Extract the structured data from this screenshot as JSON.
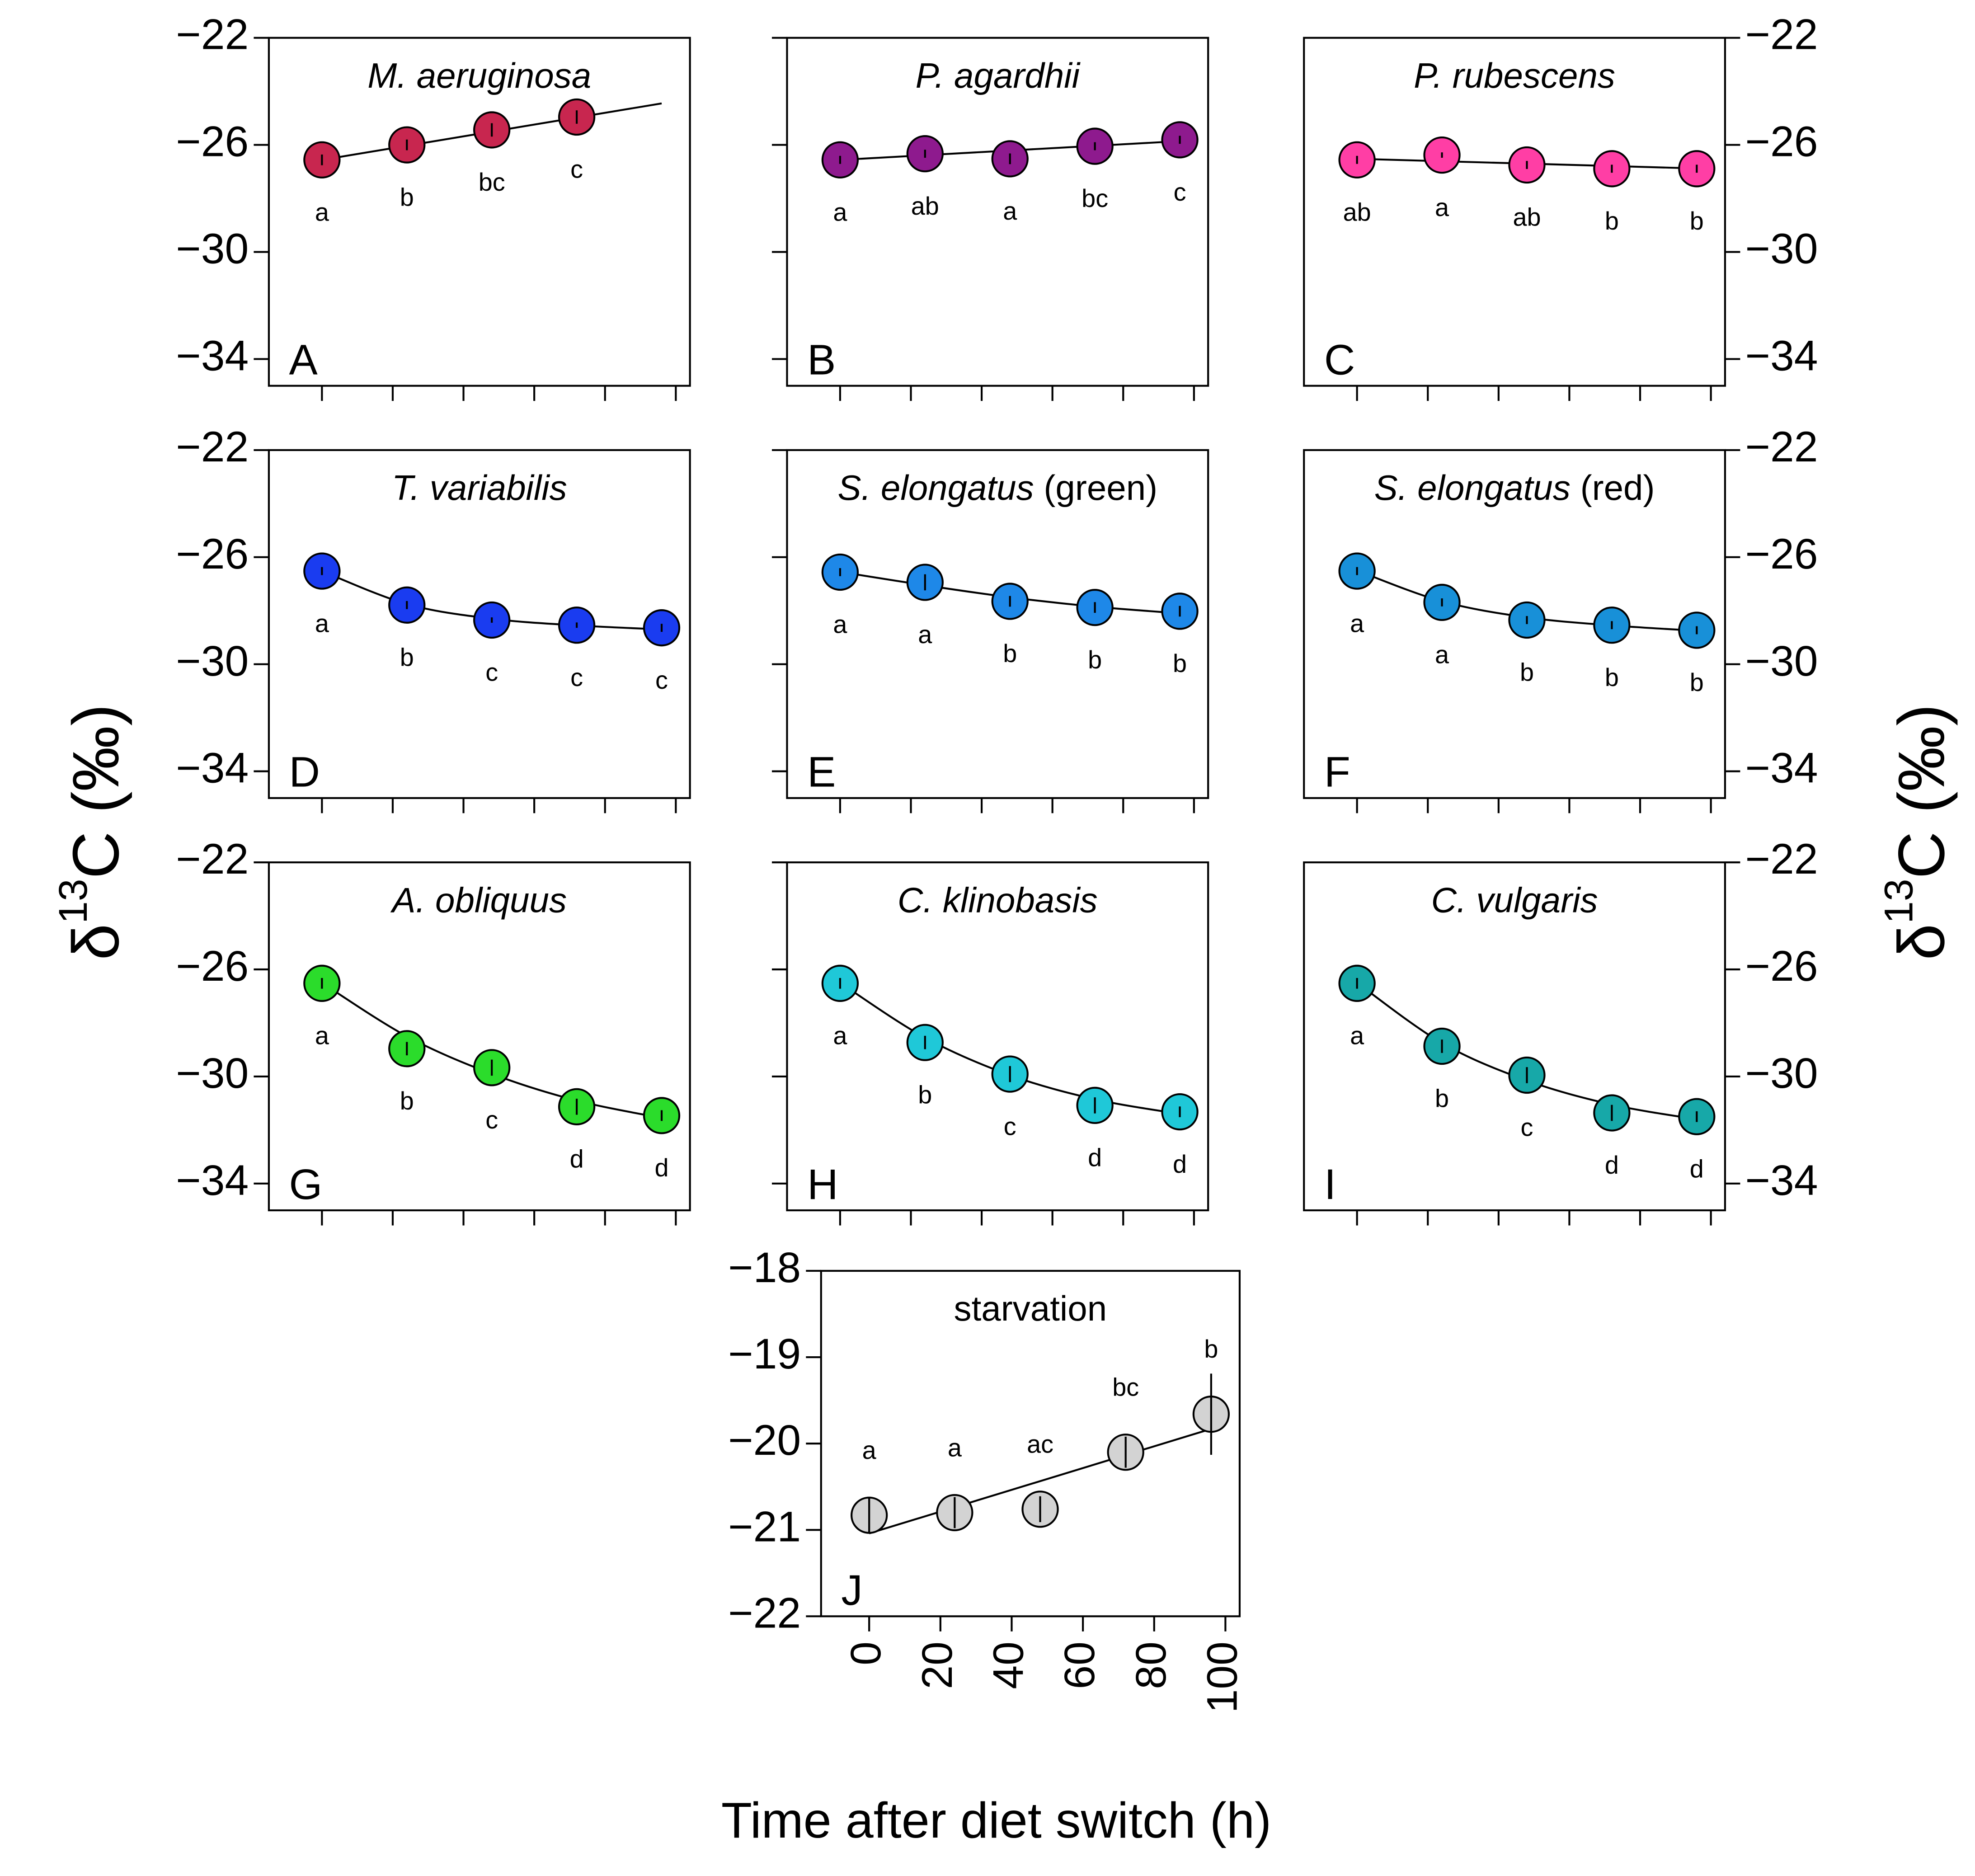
{
  "figure": {
    "ylabel": {
      "symbol": "δ",
      "superscript": "13",
      "rest": "C (‰)"
    },
    "xlabel": "Time after diet switch (h)"
  },
  "chart_data": [
    {
      "type": "scatter",
      "label": "A",
      "title": "M. aeruginosa",
      "title_italic": true,
      "color": "#c8264f",
      "x": [
        0,
        24,
        48,
        72
      ],
      "values": [
        -26.56,
        -26.0,
        -25.44,
        -24.96
      ],
      "errors": [
        0.2,
        0.2,
        0.25,
        0.25
      ],
      "letters": [
        "a",
        "b",
        "bc",
        "c"
      ],
      "letters_position": "below",
      "fit_x": [
        0,
        96
      ],
      "fit_values": [
        -26.56,
        -24.45
      ],
      "fit_shape": "line",
      "xlim": [
        -15,
        104
      ],
      "xticks": [
        0,
        20,
        40,
        60,
        80,
        100
      ],
      "xtick_labels": false,
      "ylim": [
        -35,
        -22
      ],
      "yticks": [
        {
          "value": -34,
          "label": "−34"
        },
        {
          "value": -30,
          "label": "−30"
        },
        {
          "value": -26,
          "label": "−26"
        },
        {
          "value": -22,
          "label": "−22"
        }
      ],
      "yaxis_side": "left"
    },
    {
      "type": "scatter",
      "label": "B",
      "title": "P. agardhii",
      "title_italic": true,
      "color": "#8e1a8e",
      "x": [
        0,
        24,
        48,
        72,
        96
      ],
      "values": [
        -26.56,
        -26.33,
        -26.52,
        -26.05,
        -25.81
      ],
      "errors": [
        0.15,
        0.15,
        0.2,
        0.15,
        0.15
      ],
      "letters": [
        "a",
        "ab",
        "a",
        "bc",
        "c"
      ],
      "letters_position": "below",
      "fit_x": [
        0,
        96
      ],
      "fit_values": [
        -26.56,
        -25.86
      ],
      "fit_shape": "line",
      "xlim": [
        -15,
        104
      ],
      "xticks": [
        0,
        20,
        40,
        60,
        80,
        100
      ],
      "xtick_labels": false,
      "ylim": [
        -35,
        -22
      ],
      "yticks": [
        -34,
        -30,
        -26,
        -22
      ],
      "yaxis_side": "left"
    },
    {
      "type": "scatter",
      "label": "C",
      "title": "P. rubescens",
      "title_italic": true,
      "color": "#ff3ea5",
      "x": [
        0,
        24,
        48,
        72,
        96
      ],
      "values": [
        -26.56,
        -26.38,
        -26.75,
        -26.89,
        -26.89
      ],
      "errors": [
        0.15,
        0.1,
        0.15,
        0.15,
        0.15
      ],
      "letters": [
        "ab",
        "a",
        "ab",
        "b",
        "b"
      ],
      "letters_position": "below",
      "fit_x": [
        0,
        96
      ],
      "fit_values": [
        -26.52,
        -26.88
      ],
      "fit_shape": "line",
      "xlim": [
        -15,
        104
      ],
      "xticks": [
        0,
        20,
        40,
        60,
        80,
        100
      ],
      "xtick_labels": false,
      "ylim": [
        -35,
        -22
      ],
      "yticks": [
        {
          "value": -34,
          "label": "−34"
        },
        {
          "value": -30,
          "label": "−30"
        },
        {
          "value": -26,
          "label": "−26"
        },
        {
          "value": -22,
          "label": "−22"
        }
      ],
      "yaxis_side": "right"
    },
    {
      "type": "scatter",
      "label": "D",
      "title": "T. variabilis",
      "title_italic": true,
      "color": "#1a3cf0",
      "x": [
        0,
        24,
        48,
        72,
        96
      ],
      "values": [
        -26.52,
        -27.79,
        -28.35,
        -28.54,
        -28.64
      ],
      "errors": [
        0.15,
        0.15,
        0.1,
        0.1,
        0.15
      ],
      "letters": [
        "a",
        "b",
        "c",
        "c",
        "c"
      ],
      "letters_position": "below",
      "fit_x": [
        0,
        24,
        48,
        72,
        96
      ],
      "fit_values": [
        -26.52,
        -27.75,
        -28.3,
        -28.55,
        -28.7
      ],
      "fit_shape": "curve",
      "xlim": [
        -15,
        104
      ],
      "xticks": [
        0,
        20,
        40,
        60,
        80,
        100
      ],
      "xtick_labels": false,
      "ylim": [
        -35,
        -22
      ],
      "yticks": [
        {
          "value": -34,
          "label": "−34"
        },
        {
          "value": -30,
          "label": "−30"
        },
        {
          "value": -26,
          "label": "−26"
        },
        {
          "value": -22,
          "label": "−22"
        }
      ],
      "yaxis_side": "left"
    },
    {
      "type": "scatter",
      "label": "E",
      "title": "S. elongatus",
      "title_note": "(green)",
      "title_italic": true,
      "color": "#1e88e8",
      "x": [
        0,
        24,
        48,
        72,
        96
      ],
      "values": [
        -26.56,
        -26.94,
        -27.65,
        -27.88,
        -28.02
      ],
      "errors": [
        0.15,
        0.3,
        0.2,
        0.2,
        0.2
      ],
      "letters": [
        "a",
        "a",
        "b",
        "b",
        "b"
      ],
      "letters_position": "below",
      "fit_x": [
        0,
        24,
        48,
        72,
        96
      ],
      "fit_values": [
        -26.55,
        -27.05,
        -27.5,
        -27.85,
        -28.1
      ],
      "fit_shape": "curve",
      "xlim": [
        -15,
        104
      ],
      "xticks": [
        0,
        20,
        40,
        60,
        80,
        100
      ],
      "xtick_labels": false,
      "ylim": [
        -35,
        -22
      ],
      "yticks": [
        -34,
        -30,
        -26,
        -22
      ],
      "yaxis_side": "left"
    },
    {
      "type": "scatter",
      "label": "F",
      "title": "S. elongatus",
      "title_note": "(red)",
      "title_italic": true,
      "color": "#1890d8",
      "x": [
        0,
        24,
        48,
        72,
        96
      ],
      "values": [
        -26.52,
        -27.69,
        -28.35,
        -28.54,
        -28.73
      ],
      "errors": [
        0.15,
        0.15,
        0.15,
        0.15,
        0.15
      ],
      "letters": [
        "a",
        "a",
        "b",
        "b",
        "b"
      ],
      "letters_position": "below",
      "fit_x": [
        0,
        24,
        48,
        72,
        96
      ],
      "fit_values": [
        -26.5,
        -27.65,
        -28.25,
        -28.55,
        -28.75
      ],
      "fit_shape": "curve",
      "xlim": [
        -15,
        104
      ],
      "xticks": [
        0,
        20,
        40,
        60,
        80,
        100
      ],
      "xtick_labels": false,
      "ylim": [
        -35,
        -22
      ],
      "yticks": [
        {
          "value": -34,
          "label": "−34"
        },
        {
          "value": -30,
          "label": "−30"
        },
        {
          "value": -26,
          "label": "−26"
        },
        {
          "value": -22,
          "label": "−22"
        }
      ],
      "yaxis_side": "right"
    },
    {
      "type": "scatter",
      "label": "G",
      "title": "A. obliquus",
      "title_italic": true,
      "color": "#2bdc2b",
      "x": [
        0,
        24,
        48,
        72,
        96
      ],
      "values": [
        -26.52,
        -28.96,
        -29.67,
        -31.13,
        -31.46
      ],
      "errors": [
        0.2,
        0.25,
        0.3,
        0.3,
        0.2
      ],
      "letters": [
        "a",
        "b",
        "c",
        "d",
        "d"
      ],
      "letters_position": "below",
      "fit_x": [
        0,
        24,
        48,
        72,
        96
      ],
      "fit_values": [
        -26.5,
        -28.5,
        -29.9,
        -30.9,
        -31.55
      ],
      "fit_shape": "curve",
      "xlim": [
        -15,
        104
      ],
      "xticks": [
        0,
        20,
        40,
        60,
        80,
        100
      ],
      "xtick_labels": false,
      "ylim": [
        -35,
        -22
      ],
      "yticks": [
        {
          "value": -34,
          "label": "−34"
        },
        {
          "value": -30,
          "label": "−30"
        },
        {
          "value": -26,
          "label": "−26"
        },
        {
          "value": -22,
          "label": "−22"
        }
      ],
      "yaxis_side": "left"
    },
    {
      "type": "scatter",
      "label": "H",
      "title": "C. klinobasis",
      "title_italic": true,
      "color": "#1fc8d8",
      "x": [
        0,
        24,
        48,
        72,
        96
      ],
      "values": [
        -26.52,
        -28.73,
        -29.91,
        -31.08,
        -31.32
      ],
      "errors": [
        0.2,
        0.25,
        0.3,
        0.3,
        0.2
      ],
      "letters": [
        "a",
        "b",
        "c",
        "d",
        "d"
      ],
      "letters_position": "below",
      "fit_x": [
        0,
        24,
        48,
        72,
        96
      ],
      "fit_values": [
        -26.5,
        -28.55,
        -29.95,
        -30.85,
        -31.4
      ],
      "fit_shape": "curve",
      "xlim": [
        -15,
        104
      ],
      "xticks": [
        0,
        20,
        40,
        60,
        80,
        100
      ],
      "xtick_labels": false,
      "ylim": [
        -35,
        -22
      ],
      "yticks": [
        -34,
        -30,
        -26,
        -22
      ],
      "yaxis_side": "left"
    },
    {
      "type": "scatter",
      "label": "I",
      "title": "C. vulgaris",
      "title_italic": true,
      "color": "#17a8a8",
      "x": [
        0,
        24,
        48,
        72,
        96
      ],
      "values": [
        -26.52,
        -28.87,
        -29.95,
        -31.36,
        -31.5
      ],
      "errors": [
        0.2,
        0.25,
        0.3,
        0.3,
        0.2
      ],
      "letters": [
        "a",
        "b",
        "c",
        "d",
        "d"
      ],
      "letters_position": "below",
      "fit_x": [
        0,
        24,
        48,
        72,
        96
      ],
      "fit_values": [
        -26.5,
        -28.75,
        -30.15,
        -31.05,
        -31.6
      ],
      "fit_shape": "curve",
      "xlim": [
        -15,
        104
      ],
      "xticks": [
        0,
        20,
        40,
        60,
        80,
        100
      ],
      "xtick_labels": false,
      "ylim": [
        -35,
        -22
      ],
      "yticks": [
        {
          "value": -34,
          "label": "−34"
        },
        {
          "value": -30,
          "label": "−30"
        },
        {
          "value": -26,
          "label": "−26"
        },
        {
          "value": -22,
          "label": "−22"
        }
      ],
      "yaxis_side": "right"
    },
    {
      "type": "scatter",
      "label": "J",
      "title": "starvation",
      "title_italic": false,
      "color": "#d3d3d3",
      "x": [
        0,
        24,
        48,
        72,
        96
      ],
      "values": [
        -20.83,
        -20.8,
        -20.76,
        -20.1,
        -19.66
      ],
      "errors": [
        0.2,
        0.18,
        0.15,
        0.18,
        0.47
      ],
      "letters": [
        "a",
        "a",
        "ac",
        "bc",
        "b"
      ],
      "letters_position": "above",
      "fit_x": [
        0,
        96
      ],
      "fit_values": [
        -21.04,
        -19.83
      ],
      "fit_shape": "line",
      "xlim": [
        -13.5,
        104
      ],
      "xticks": [
        0,
        20,
        40,
        60,
        80,
        100
      ],
      "xtick_labels": true,
      "ylim": [
        -22,
        -18
      ],
      "yticks": [
        {
          "value": -22,
          "label": "−22"
        },
        {
          "value": -21,
          "label": "−21"
        },
        {
          "value": -20,
          "label": "−20"
        },
        {
          "value": -19,
          "label": "−19"
        },
        {
          "value": -18,
          "label": "−18"
        }
      ],
      "yaxis_side": "left"
    }
  ]
}
